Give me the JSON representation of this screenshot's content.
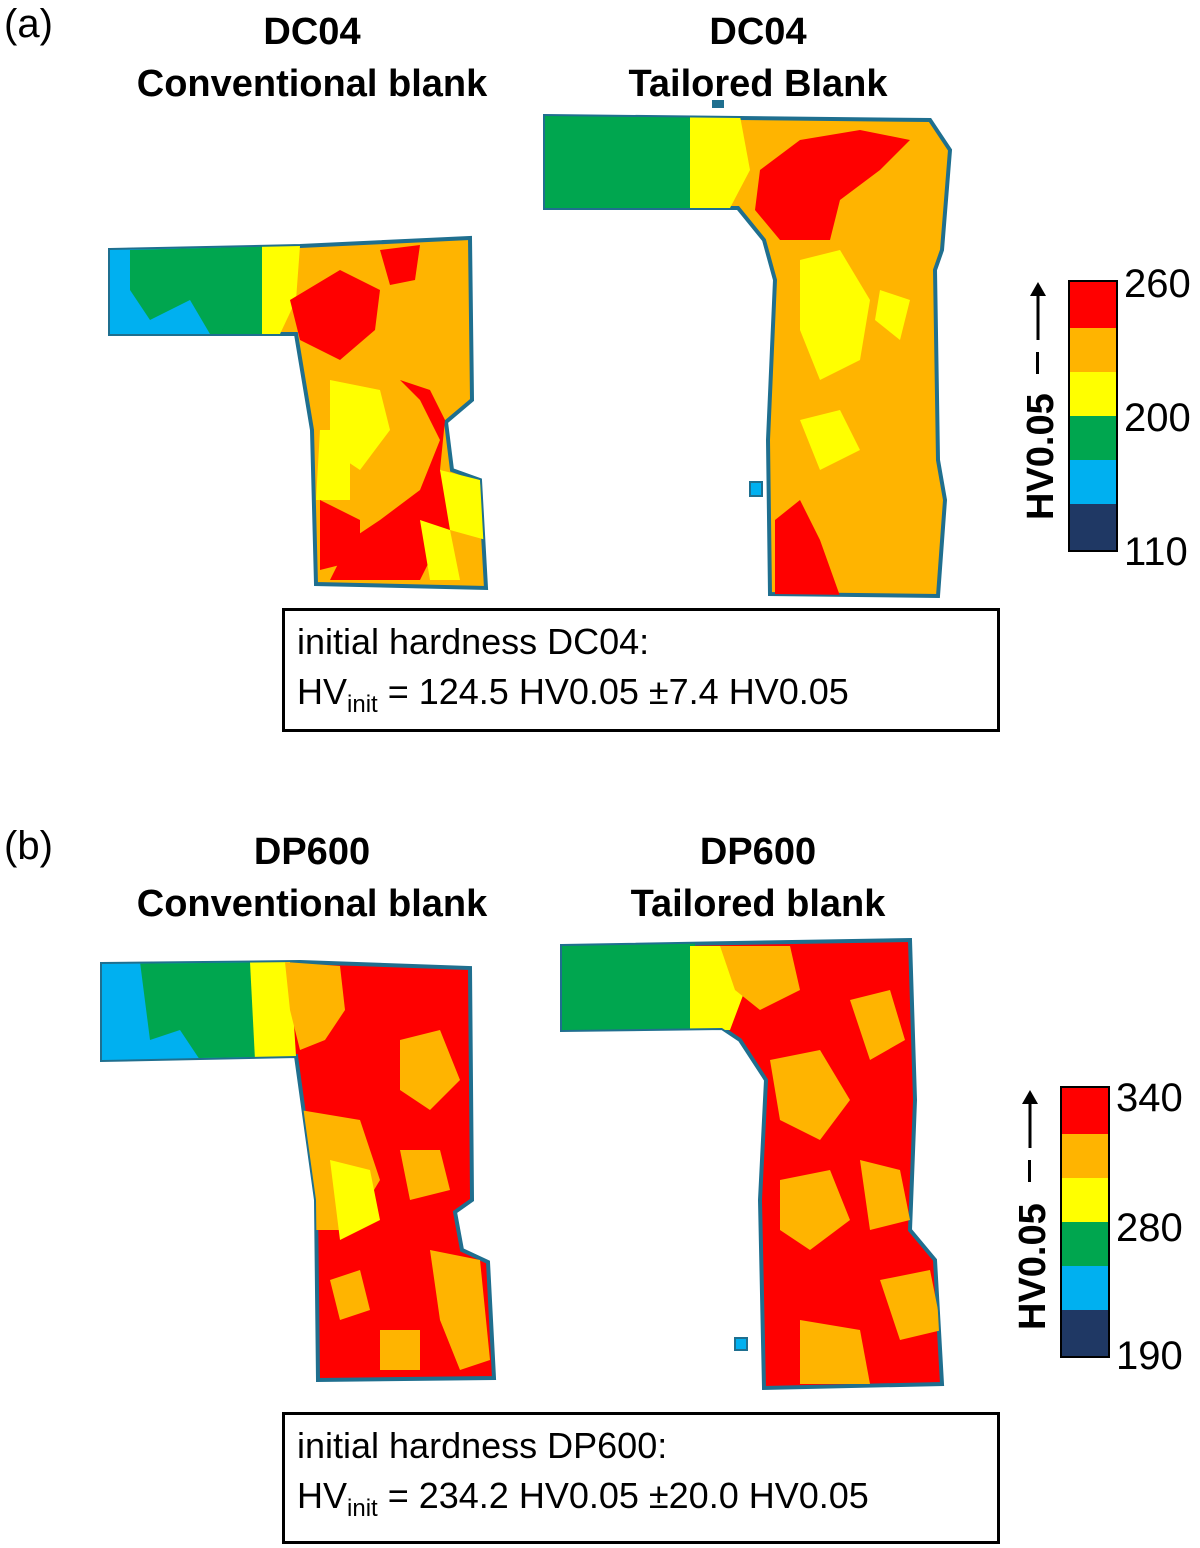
{
  "panels": [
    {
      "label": "(a)",
      "left_title": {
        "line1": "DC04",
        "line2": "Conventional blank"
      },
      "right_title": {
        "line1": "DC04",
        "line2": "Tailored Blank"
      },
      "info": {
        "line1": "initial hardness DC04:",
        "hv": "HV",
        "hv_sub": "init",
        "line2_rest": " = 124.5 HV0.05 ±7.4 HV0.05"
      },
      "scale": {
        "axis_label": "HV0.05",
        "ticks": [
          "260",
          "200",
          "110"
        ],
        "colors": [
          "#ff0000",
          "#ffb400",
          "#ffff00",
          "#00a64f",
          "#00b0f0",
          "#1f3864"
        ]
      }
    },
    {
      "label": "(b)",
      "left_title": {
        "line1": "DP600",
        "line2": "Conventional blank"
      },
      "right_title": {
        "line1": "DP600",
        "line2": "Tailored blank"
      },
      "info": {
        "line1": "initial hardness DP600:",
        "hv": "HV",
        "hv_sub": "init",
        "line2_rest": " = 234.2 HV0.05 ±20.0 HV0.05"
      },
      "scale": {
        "axis_label": "HV0.05",
        "ticks": [
          "340",
          "280",
          "190"
        ],
        "colors": [
          "#ff0000",
          "#ffb400",
          "#ffff00",
          "#00a64f",
          "#00b0f0",
          "#1f3864"
        ]
      }
    }
  ]
}
